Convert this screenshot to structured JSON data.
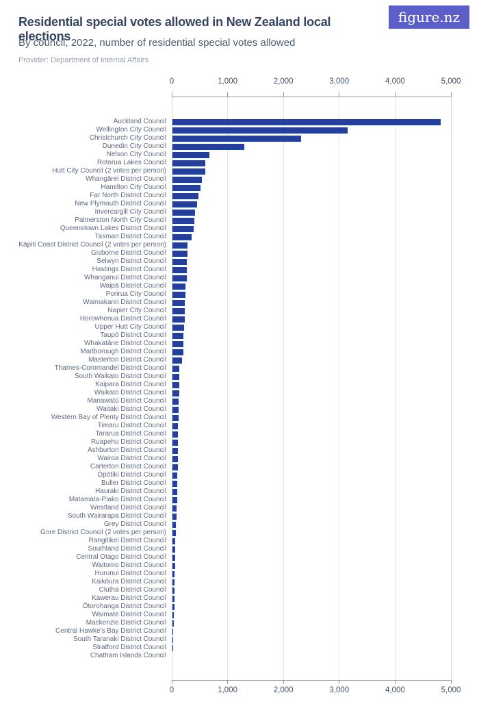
{
  "header": {
    "title": "Residential special votes allowed in New Zealand local elections",
    "subtitle": "By council, 2022, number of residential special votes allowed",
    "provider": "Provider: Department of Internal Affairs",
    "logo_text": "figure.nz"
  },
  "colors": {
    "bar": "#24409a",
    "logo_bg": "#5b5fc7",
    "title": "#344461",
    "subtitle": "#4c5a6e",
    "provider": "#9aa1ac",
    "row_label": "#5d6a80",
    "axis_text": "#424f66",
    "gridline": "#e4e5e8",
    "plot_border": "#d2d5da",
    "axis_line": "#8f949d"
  },
  "chart_data": {
    "type": "bar",
    "orientation": "horizontal",
    "title": "Residential special votes allowed in New Zealand local elections",
    "subtitle": "By council, 2022, number of residential special votes allowed",
    "xlabel": "",
    "ylabel": "",
    "xlim": [
      0,
      5000
    ],
    "x_ticks": [
      0,
      1000,
      2000,
      3000,
      4000,
      5000
    ],
    "x_tick_labels": [
      "0",
      "1,000",
      "2,000",
      "3,000",
      "4,000",
      "5,000"
    ],
    "grid": true,
    "axis_positions": [
      "top",
      "bottom"
    ],
    "categories": [
      "Auckland Council",
      "Wellington City Council",
      "Christchurch City Council",
      "Dunedin City Council",
      "Nelson City Council",
      "Rotorua Lakes Council",
      "Hutt City Council (2 votes per person)",
      "Whangārei District Council",
      "Hamilton City Council",
      "Far North District Council",
      "New Plymouth District Council",
      "Invercargill City Council",
      "Palmerston North City Council",
      "Queenstown Lakes District Council",
      "Tasman District Council",
      "Kāpiti Coast District Council (2 votes per person)",
      "Gisborne District Council",
      "Selwyn District Council",
      "Hastings District Council",
      "Whanganui District Council",
      "Waipā District Council",
      "Porirua City Council",
      "Waimakariri District Council",
      "Napier City Council",
      "Horowhenua District Council",
      "Upper Hutt City Council",
      "Taupō District Council",
      "Whakatāne District Council",
      "Marlborough District Council",
      "Masterton District Council",
      "Thames-Coromandel District Council",
      "South Waikato District Council",
      "Kaipara District Council",
      "Waikato District Council",
      "Manawatū District Council",
      "Waitaki District Council",
      "Western Bay of Plenty District Council",
      "Timaru District Council",
      "Tararua District Council",
      "Ruapehu District Council",
      "Ashburton District Council",
      "Wairoa District Council",
      "Carterton District Council",
      "Ōpōtiki District Council",
      "Buller District Council",
      "Hauraki District Council",
      "Matamata-Piako District Council",
      "Westland District Council",
      "South Wairarapa District Council",
      "Grey District Council",
      "Gore District Council (2 votes per person)",
      "Rangitikei District Council",
      "Southland District Council",
      "Central Otago District Council",
      "Waitomo District Council",
      "Hurunui District Council",
      "Kaikōura District Council",
      "Clutha District Council",
      "Kawerau District Council",
      "Ōtorohanga District Council",
      "Waimate District Council",
      "Mackenzie District Council",
      "Central Hawke's Bay District Council",
      "South Taranaki District Council",
      "Stratford District Council",
      "Chatham Islands Council"
    ],
    "values": [
      4800,
      3140,
      2310,
      1290,
      660,
      590,
      585,
      530,
      505,
      465,
      440,
      400,
      395,
      375,
      340,
      275,
      265,
      256,
      254,
      252,
      230,
      228,
      224,
      222,
      220,
      212,
      202,
      197,
      193,
      172,
      120,
      119,
      118,
      117,
      115,
      113,
      110,
      104,
      101,
      99,
      97,
      95,
      93,
      86,
      84,
      82,
      80,
      76,
      73,
      60,
      57,
      55,
      47,
      45,
      43,
      41,
      40,
      38,
      33,
      32,
      30,
      25,
      13,
      11,
      4,
      0
    ]
  }
}
